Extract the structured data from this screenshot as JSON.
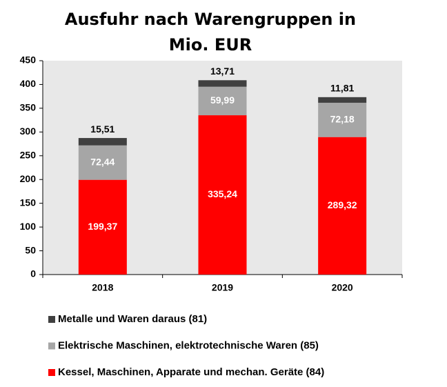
{
  "chart_data": {
    "type": "stacked_bar",
    "title": "Ausfuhr nach Warengruppen in Mio. EUR",
    "categories": [
      "2018",
      "2019",
      "2020"
    ],
    "series": [
      {
        "name": "Kessel, Maschinen, Apparate und mechan. Geräte (84)",
        "color": "#ff0000",
        "values": [
          199.37,
          335.24,
          289.32
        ],
        "value_labels": [
          "199,37",
          "335,24",
          "289,32"
        ]
      },
      {
        "name": "Elektrische Maschinen, elektrotechnische Waren (85)",
        "color": "#a6a6a6",
        "values": [
          72.44,
          59.99,
          72.18
        ],
        "value_labels": [
          "72,44",
          "59,99",
          "72,18"
        ]
      },
      {
        "name": "Metalle und Waren daraus (81)",
        "color": "#404040",
        "values": [
          15.51,
          13.71,
          11.81
        ],
        "value_labels": [
          "15,51",
          "13,71",
          "11,81"
        ]
      }
    ],
    "ylim": [
      0,
      450
    ],
    "yticks": [
      0,
      50,
      100,
      150,
      200,
      250,
      300,
      350,
      400,
      450
    ]
  }
}
